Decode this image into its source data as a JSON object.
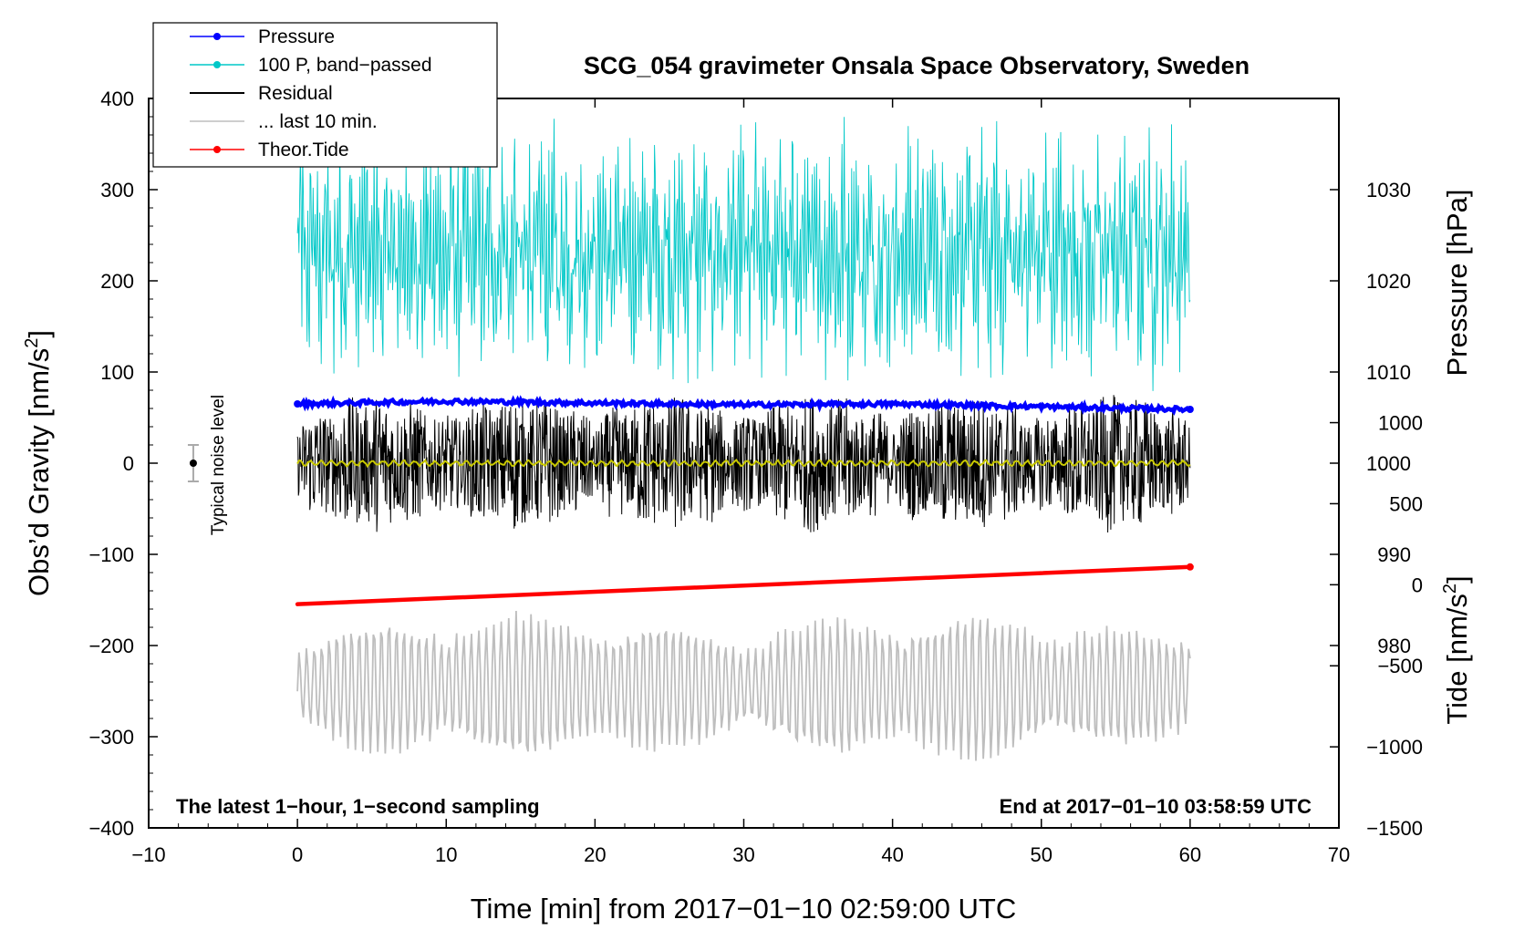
{
  "chart_data": {
    "type": "line",
    "title": "SCG_054 gravimeter Onsala Space Observatory, Sweden",
    "xlabel": "Time [min] from 2017−01−10 02:59:00 UTC",
    "ylabel": "Obs’d Gravity [nm/s",
    "ylabel_sup": "2",
    "ylabel_close": "]",
    "ylabel_right_top": "Pressure [hPa]",
    "ylabel_right_bottom": "Tide [nm/s",
    "ylabel_right_bottom_sup": "2",
    "ylabel_right_bottom_close": "]",
    "xlim": [
      -10,
      70
    ],
    "ylim": [
      -400,
      400
    ],
    "pressure_axis_lim": [
      960,
      1040
    ],
    "tide_axis_lim": [
      -1500,
      3000
    ],
    "x_ticks": [
      {
        "value": -10,
        "label": "−10"
      },
      {
        "value": 0,
        "label": "0"
      },
      {
        "value": 10,
        "label": "10"
      },
      {
        "value": 20,
        "label": "20"
      },
      {
        "value": 30,
        "label": "30"
      },
      {
        "value": 40,
        "label": "40"
      },
      {
        "value": 50,
        "label": "50"
      },
      {
        "value": 60,
        "label": "60"
      },
      {
        "value": 70,
        "label": "70"
      }
    ],
    "y_ticks": [
      {
        "value": 400,
        "label": "400"
      },
      {
        "value": 300,
        "label": "300"
      },
      {
        "value": 200,
        "label": "200"
      },
      {
        "value": 100,
        "label": "100"
      },
      {
        "value": 0,
        "label": "0"
      },
      {
        "value": -100,
        "label": "−100"
      },
      {
        "value": -200,
        "label": "−200"
      },
      {
        "value": -300,
        "label": "−300"
      },
      {
        "value": -400,
        "label": "−400"
      }
    ],
    "pressure_ticks": [
      {
        "value": 1030,
        "label": "1030"
      },
      {
        "value": 1020,
        "label": "1020"
      },
      {
        "value": 1010,
        "label": "1010"
      },
      {
        "value": 1000,
        "label": "1000"
      },
      {
        "value": 990,
        "label": "990"
      },
      {
        "value": 980,
        "label": "980"
      }
    ],
    "tide_ticks": [
      {
        "value": 1000,
        "label": "1000"
      },
      {
        "value": 500,
        "label": "500"
      },
      {
        "value": 0,
        "label": "0"
      },
      {
        "value": -500,
        "label": "−500"
      },
      {
        "value": -1000,
        "label": "−1000"
      },
      {
        "value": -1500,
        "label": "−1500"
      }
    ],
    "legend": [
      {
        "label": "Pressure",
        "color": "#0000ff",
        "marker": true
      },
      {
        "label": "100 P, band−passed",
        "color": "#00c8c8",
        "marker": true
      },
      {
        "label": "Residual",
        "color": "#000000",
        "marker": false
      },
      {
        "label": "... last 10 min.",
        "color": "#bebebe",
        "marker": false
      },
      {
        "label": "Theor.Tide",
        "color": "#ff0000",
        "marker": true
      }
    ],
    "series": [
      {
        "name": "Pressure",
        "axis": "pressure",
        "x": [
          0,
          10,
          20,
          30,
          40,
          50,
          60
        ],
        "values": [
          1006.5,
          1006.8,
          1006.6,
          1006.4,
          1006.5,
          1006.2,
          1005.9
        ]
      },
      {
        "name": "100 P, band-passed",
        "axis": "gravity",
        "x_range": [
          0,
          60
        ],
        "center": 230,
        "amplitude": 110
      },
      {
        "name": "Residual",
        "axis": "gravity",
        "x_range": [
          0,
          60
        ],
        "center": 0,
        "amplitude": 45
      },
      {
        "name": "Residual smoothed",
        "axis": "gravity",
        "x_range": [
          0,
          60
        ],
        "values_mean": 0
      },
      {
        "name": "... last 10 min.",
        "axis": "gravity",
        "x_range": [
          0,
          60
        ],
        "center": -245,
        "amplitude": 60
      },
      {
        "name": "Theor.Tide",
        "axis": "tide",
        "x": [
          0,
          60
        ],
        "values": [
          -120,
          110
        ]
      }
    ],
    "noise_marker": {
      "label": "Typical noise level",
      "x": -7,
      "y": 0,
      "error": 20
    },
    "annotations": {
      "left": "The latest 1−hour, 1−second sampling",
      "right": "End at 2017−01−10 03:58:59 UTC"
    },
    "colors": {
      "pressure": "#0000ff",
      "bandpassed": "#00c8c8",
      "residual": "#000000",
      "smoothed": "#c8c800",
      "last10": "#bebebe",
      "tide": "#ff0000",
      "noise_bar": "#aaaaaa"
    }
  }
}
